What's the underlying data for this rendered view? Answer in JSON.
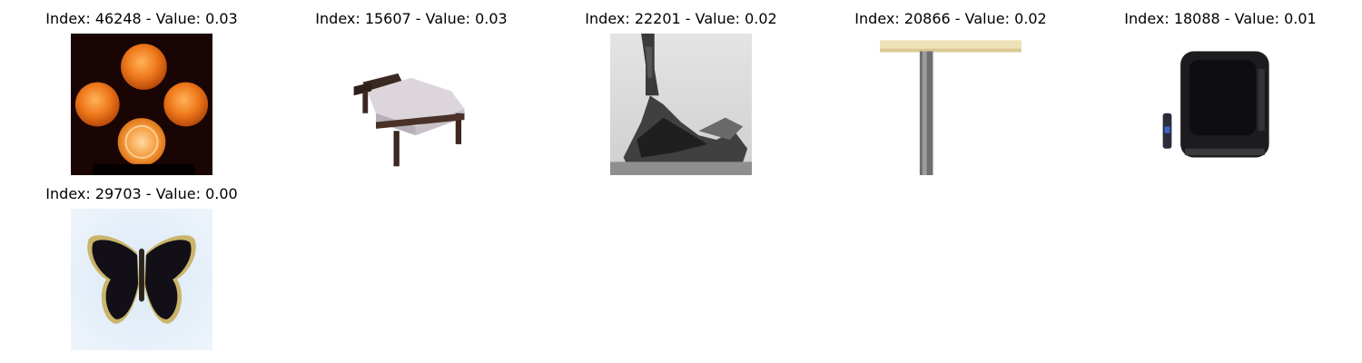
{
  "figure": {
    "panels": [
      {
        "index": "46248",
        "value": "0.03",
        "title": "Index: 46248 - Value: 0.03",
        "subject": "oranges-image"
      },
      {
        "index": "15607",
        "value": "0.03",
        "title": "Index: 15607 - Value: 0.03",
        "subject": "bed-image"
      },
      {
        "index": "22201",
        "value": "0.02",
        "title": "Index: 22201 - Value: 0.02",
        "subject": "train-image"
      },
      {
        "index": "20866",
        "value": "0.02",
        "title": "Index: 20866 - Value: 0.02",
        "subject": "table-image"
      },
      {
        "index": "18088",
        "value": "0.01",
        "title": "Index: 18088 - Value: 0.01",
        "subject": "television-image"
      },
      {
        "index": "29703",
        "value": "0.00",
        "title": "Index: 29703 - Value: 0.00",
        "subject": "butterfly-image"
      }
    ]
  }
}
